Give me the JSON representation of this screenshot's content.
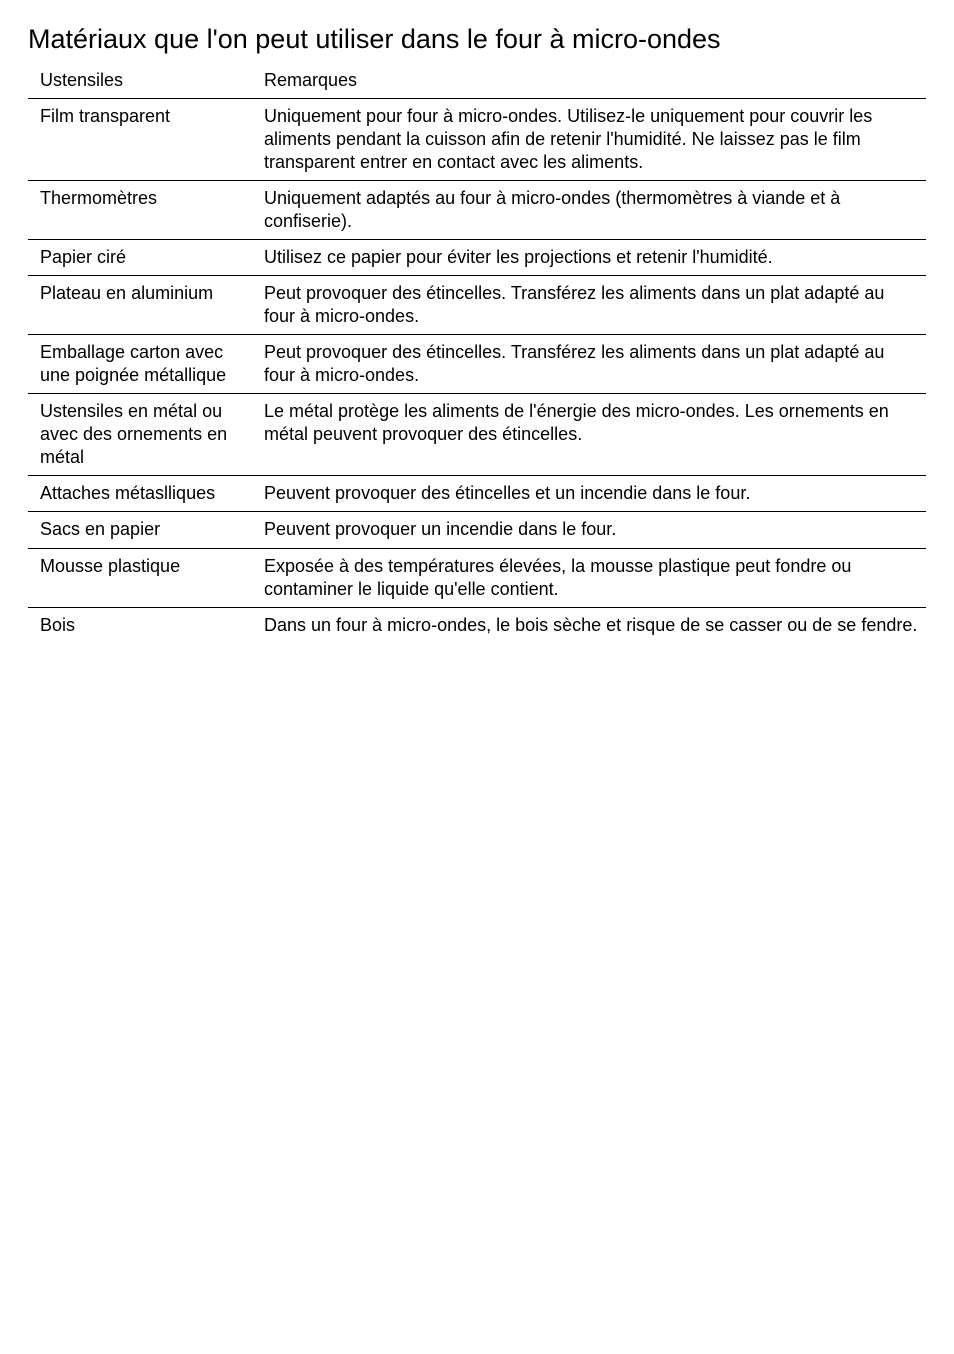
{
  "title": "Matériaux que l'on peut utiliser dans le four à micro-ondes",
  "table": {
    "columns": [
      "Ustensiles",
      "Remarques"
    ],
    "rows": [
      {
        "ustensile": "Film transparent",
        "remarque": "Uniquement pour four à micro-ondes. Utilisez-le uniquement pour couvrir les aliments pendant la cuisson afin de retenir l'humidité. Ne laissez pas le film transparent entrer en contact avec les aliments."
      },
      {
        "ustensile": "Thermomètres",
        "remarque": "Uniquement adaptés au four à micro-ondes (thermomètres à viande et à confiserie)."
      },
      {
        "ustensile": "Papier ciré",
        "remarque": "Utilisez ce papier pour éviter les projections et retenir l'humidité."
      },
      {
        "ustensile": "Plateau en aluminium",
        "remarque": "Peut provoquer des étincelles. Transférez les aliments dans un plat adapté au four à micro-ondes."
      },
      {
        "ustensile": "Emballage carton avec une poignée métallique",
        "remarque": "Peut provoquer des étincelles. Transférez les aliments dans un plat adapté au four à micro-ondes."
      },
      {
        "ustensile": "Ustensiles en métal ou avec des ornements en métal",
        "remarque": "Le métal protège les aliments de l'énergie des micro-ondes. Les ornements en métal peuvent provoquer des étincelles."
      },
      {
        "ustensile": "Attaches métaslliques",
        "remarque": "Peuvent provoquer des étincelles et un incendie dans le four."
      },
      {
        "ustensile": "Sacs en papier",
        "remarque": "Peuvent provoquer un incendie dans le four."
      },
      {
        "ustensile": "Mousse plastique",
        "remarque": "Exposée à des températures élevées, la mousse plastique peut fondre ou contaminer le liquide qu'elle contient."
      },
      {
        "ustensile": "Bois",
        "remarque": "Dans un four à micro-ondes, le bois sèche et risque de se casser ou de se fendre."
      }
    ]
  }
}
